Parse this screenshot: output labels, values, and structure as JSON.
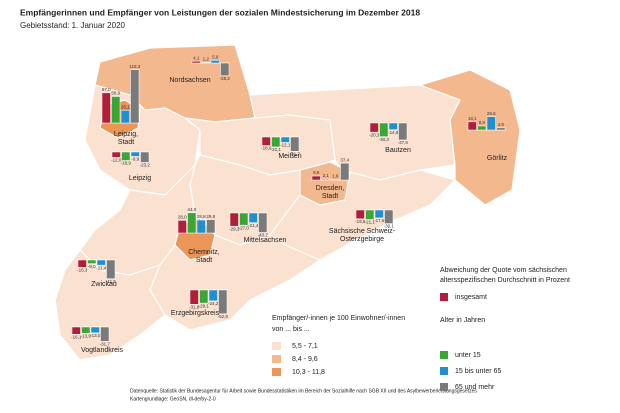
{
  "title": "Empfängerinnen und Empfänger von Leistungen der sozialen Mindestsicherung im Dezember 2018",
  "subtitle": "Gebietsstand: 1. Januar 2020",
  "deviation_legend": {
    "title_lines": [
      "Abweichung der Quote vom sächsischen",
      "altersspezifischen Durchschnitt in Prozent"
    ],
    "age_title": "Alter in Jahren"
  },
  "age_groups": [
    {
      "name": "insgesamt",
      "color": "#b01e3c"
    },
    {
      "name": "unter 15",
      "color": "#3aa635"
    },
    {
      "name": "15 bis unter 65",
      "color": "#1f8fd0"
    },
    {
      "name": "65 und mehr",
      "color": "#7a7a7a"
    }
  ],
  "rate_legend": {
    "title_lines": [
      "Empfänger/-innen je 100 Einwohner/-innen",
      "von ... bis ..."
    ],
    "classes": [
      {
        "label": "5,5  -  7,1",
        "color": "#fbe1cf"
      },
      {
        "label": "8,4  -  9,6",
        "color": "#f4b88e"
      },
      {
        "label": "10,3  -  11,8",
        "color": "#ec9558"
      }
    ]
  },
  "regions": [
    {
      "name_lines": [
        "Leipzig"
      ],
      "class": 0,
      "values": [
        -12.0,
        -18.9,
        -9.9,
        -23.2
      ],
      "value_labels": [
        "-12,0",
        "-18,9",
        "-9,9",
        "-23,2"
      ]
    },
    {
      "name_lines": [
        "Nordsachsen"
      ],
      "class": 1,
      "values": [
        4.1,
        1.2,
        5.9,
        -28.2
      ],
      "value_labels": [
        "4,1",
        "1,2",
        "5,9",
        "-28,2"
      ]
    },
    {
      "name_lines": [
        "Leipzig,",
        "Stadt"
      ],
      "class": 2,
      "values": [
        67.0,
        58.9,
        28.1,
        118.3
      ],
      "value_labels": [
        "67,0",
        "58,9",
        "28,1",
        "118,3"
      ]
    },
    {
      "name_lines": [
        "Meißen"
      ],
      "class": 0,
      "values": [
        -18.9,
        -22.1,
        -12.1,
        -31.7
      ],
      "value_labels": [
        "-18,9",
        "-22,1",
        "-12,1",
        "-31,7"
      ]
    },
    {
      "name_lines": [
        "Bautzen"
      ],
      "class": 0,
      "values": [
        -20.3,
        -30.3,
        -14.8,
        -37.6
      ],
      "value_labels": [
        "-20,3",
        "-30,3",
        "-14,8",
        "-37,6"
      ]
    },
    {
      "name_lines": [
        "Görlitz"
      ],
      "class": 1,
      "values": [
        18.1,
        8.9,
        29.6,
        4.9
      ],
      "value_labels": [
        "18,1",
        "8,9",
        "29,6",
        "4,9"
      ]
    },
    {
      "name_lines": [
        "Mittelsachsen"
      ],
      "class": 0,
      "values": [
        -29.3,
        -27.0,
        -21.4,
        -43.2
      ],
      "value_labels": [
        "-29,3",
        "-27,0",
        "-21,4",
        "-43,2"
      ]
    },
    {
      "name_lines": [
        "Sächsische Schweiz-",
        "Osterzgebirge"
      ],
      "class": 0,
      "values": [
        -19.6,
        -21.1,
        -17.6,
        -30.1
      ],
      "value_labels": [
        "-19,6",
        "-21,1",
        "-17,6",
        "-30,1"
      ]
    },
    {
      "name_lines": [
        "Dresden,",
        "Stadt"
      ],
      "class": 1,
      "values": [
        8.8,
        2.1,
        1.6,
        37.4
      ],
      "value_labels": [
        "8,8",
        "2,1",
        "1,6",
        "37,4"
      ]
    },
    {
      "name_lines": [
        "Zwickau"
      ],
      "class": 0,
      "values": [
        -16.3,
        -8.0,
        -11.4,
        -41.5
      ],
      "value_labels": [
        "-16,3",
        "-8,0",
        "-11,4",
        "-41,5"
      ]
    },
    {
      "name_lines": [
        "Erzgebirgskreis"
      ],
      "class": 0,
      "values": [
        -31.8,
        -29.1,
        -24.2,
        -52.8
      ],
      "value_labels": [
        "-31,8",
        "-29,1",
        "-24,2",
        "-52,8"
      ]
    },
    {
      "name_lines": [
        "Chemnitz,",
        "Stadt"
      ],
      "class": 2,
      "values": [
        28.0,
        44.9,
        28.8,
        29.8
      ],
      "value_labels": [
        "28,0",
        "44,9",
        "28,8",
        "29,8"
      ]
    },
    {
      "name_lines": [
        "Vogtlandkreis"
      ],
      "class": 0,
      "values": [
        -16.1,
        -13.9,
        -13.0,
        -31.7
      ],
      "value_labels": [
        "-16,1",
        "-13,9",
        "-13,0",
        "-31,7"
      ]
    }
  ],
  "source_lines": [
    "Datenquelle: Statistik der Bundesagentur für Arbeit sowie Bundesstatistiken im Bereich der Sozialhilfe nach SGB XII und des Asylbewerberleistungsgesetzes",
    "Kartengrundlage: GeoSN, dl-de/by-2-0"
  ]
}
